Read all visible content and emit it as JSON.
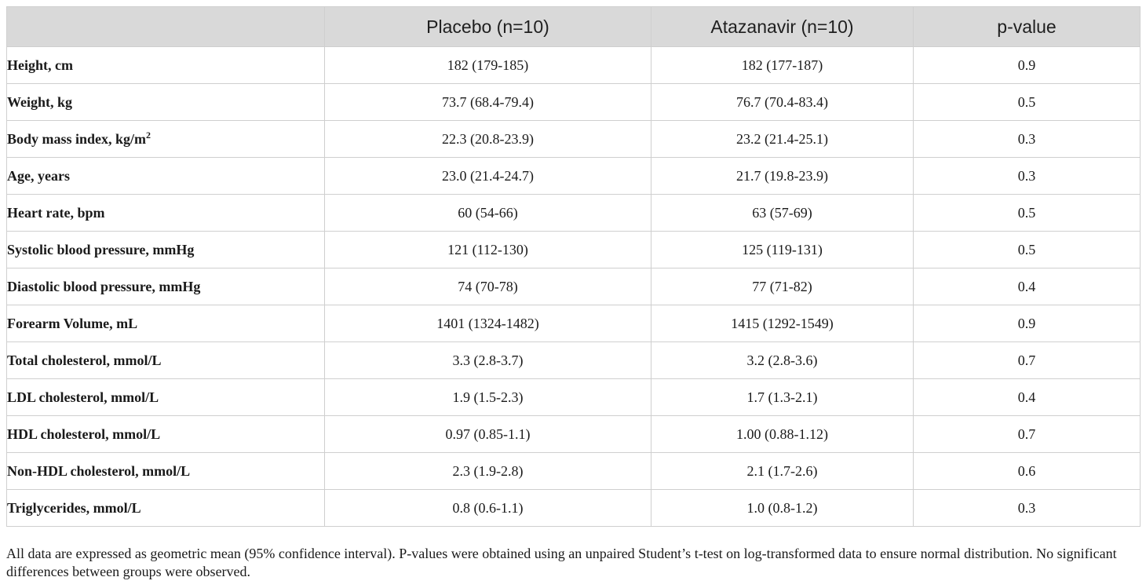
{
  "table": {
    "headers": [
      "",
      "Placebo (n=10)",
      "Atazanavir (n=10)",
      "p-value"
    ],
    "rows": [
      {
        "label": "Height, cm",
        "sup": "",
        "placebo": "182 (179-185)",
        "atazanavir": "182 (177-187)",
        "p": "0.9"
      },
      {
        "label": "Weight, kg",
        "sup": "",
        "placebo": "73.7 (68.4-79.4)",
        "atazanavir": "76.7 (70.4-83.4)",
        "p": "0.5"
      },
      {
        "label": "Body mass index, kg/m",
        "sup": "2",
        "placebo": "22.3 (20.8-23.9)",
        "atazanavir": "23.2 (21.4-25.1)",
        "p": "0.3"
      },
      {
        "label": "Age, years",
        "sup": "",
        "placebo": "23.0 (21.4-24.7)",
        "atazanavir": "21.7 (19.8-23.9)",
        "p": "0.3"
      },
      {
        "label": "Heart rate, bpm",
        "sup": "",
        "placebo": "60 (54-66)",
        "atazanavir": "63 (57-69)",
        "p": "0.5"
      },
      {
        "label": "Systolic blood pressure, mmHg",
        "sup": "",
        "placebo": "121 (112-130)",
        "atazanavir": "125 (119-131)",
        "p": "0.5"
      },
      {
        "label": "Diastolic blood pressure, mmHg",
        "sup": "",
        "placebo": "74 (70-78)",
        "atazanavir": "77 (71-82)",
        "p": "0.4"
      },
      {
        "label": "Forearm Volume, mL",
        "sup": "",
        "placebo": "1401 (1324-1482)",
        "atazanavir": "1415 (1292-1549)",
        "p": "0.9"
      },
      {
        "label": "Total cholesterol, mmol/L",
        "sup": "",
        "placebo": "3.3 (2.8-3.7)",
        "atazanavir": "3.2 (2.8-3.6)",
        "p": "0.7"
      },
      {
        "label": "LDL cholesterol, mmol/L",
        "sup": "",
        "placebo": "1.9 (1.5-2.3)",
        "atazanavir": "1.7 (1.3-2.1)",
        "p": "0.4"
      },
      {
        "label": "HDL cholesterol, mmol/L",
        "sup": "",
        "placebo": "0.97 (0.85-1.1)",
        "atazanavir": "1.00 (0.88-1.12)",
        "p": "0.7"
      },
      {
        "label": "Non-HDL cholesterol, mmol/L",
        "sup": "",
        "placebo": "2.3 (1.9-2.8)",
        "atazanavir": "2.1 (1.7-2.6)",
        "p": "0.6"
      },
      {
        "label": "Triglycerides, mmol/L",
        "sup": "",
        "placebo": "0.8 (0.6-1.1)",
        "atazanavir": "1.0 (0.8-1.2)",
        "p": "0.3"
      }
    ]
  },
  "footnote": "All data are expressed as geometric mean (95% confidence interval). P-values were obtained using an unpaired Student’s t-test on log-transformed data to ensure normal distribution. No significant differences between groups were observed.",
  "colors": {
    "header_bg": "#d9d9d9",
    "border": "#cfcfcf"
  }
}
